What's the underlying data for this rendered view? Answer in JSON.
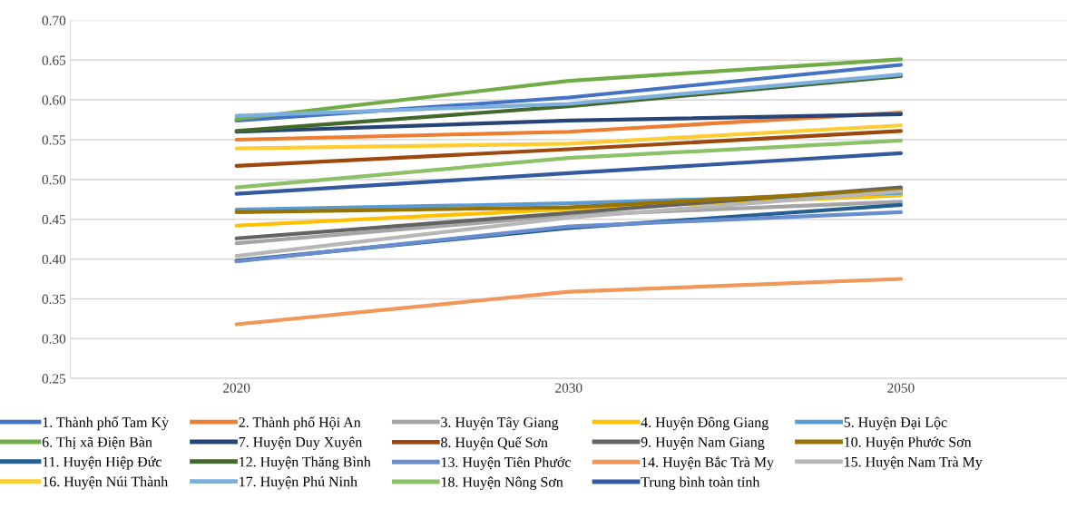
{
  "chart_data": {
    "type": "line",
    "categories": [
      "2020",
      "2030",
      "2050"
    ],
    "ylim": [
      0.25,
      0.7
    ],
    "yticks": [
      {
        "value": 0.25,
        "label": "0.25"
      },
      {
        "value": 0.3,
        "label": "0.30"
      },
      {
        "value": 0.35,
        "label": "0.35"
      },
      {
        "value": 0.4,
        "label": "0.40"
      },
      {
        "value": 0.45,
        "label": "0.45"
      },
      {
        "value": 0.5,
        "label": "0.50"
      },
      {
        "value": 0.55,
        "label": "0.55"
      },
      {
        "value": 0.6,
        "label": "0.60"
      },
      {
        "value": 0.65,
        "label": "0.65"
      },
      {
        "value": 0.7,
        "label": "0.70"
      }
    ],
    "grid": "y",
    "legend": "bottom",
    "marker": "none",
    "line_style": "solid",
    "series": [
      {
        "name": "1. Thành phố Tam Kỳ",
        "color": "#4472c4",
        "values": [
          0.574,
          0.603,
          0.644
        ]
      },
      {
        "name": "2. Thành phố Hội An",
        "color": "#ed7d31",
        "values": [
          0.55,
          0.56,
          0.584
        ]
      },
      {
        "name": "3. Huyện Tây Giang",
        "color": "#a5a5a5",
        "values": [
          0.42,
          0.455,
          0.472
        ]
      },
      {
        "name": "4. Huyện Đông Giang",
        "color": "#ffc000",
        "values": [
          0.442,
          0.463,
          0.48
        ]
      },
      {
        "name": "5. Huyện Đại Lộc",
        "color": "#5b9bd5",
        "values": [
          0.462,
          0.47,
          0.483
        ]
      },
      {
        "name": "6. Thị xã Điện Bàn",
        "color": "#70ad47",
        "values": [
          0.576,
          0.624,
          0.651
        ]
      },
      {
        "name": "7. Huyện Duy Xuyên",
        "color": "#264478",
        "values": [
          0.56,
          0.574,
          0.582
        ]
      },
      {
        "name": "8. Huyện Quế Sơn",
        "color": "#9e480e",
        "values": [
          0.517,
          0.538,
          0.561
        ]
      },
      {
        "name": "9. Huyện Nam Giang",
        "color": "#636363",
        "values": [
          0.426,
          0.458,
          0.49
        ]
      },
      {
        "name": "10. Huyện Phước Sơn",
        "color": "#997300",
        "values": [
          0.459,
          0.465,
          0.487
        ]
      },
      {
        "name": "11. Huyện Hiệp Đức",
        "color": "#255e91",
        "values": [
          0.398,
          0.439,
          0.468
        ]
      },
      {
        "name": "12. Huyện Thăng Bình",
        "color": "#43682b",
        "values": [
          0.561,
          0.592,
          0.63
        ]
      },
      {
        "name": "13. Huyện Tiên Phước",
        "color": "#698ed0",
        "values": [
          0.397,
          0.441,
          0.459
        ]
      },
      {
        "name": "14. Huyện Bắc Trà My",
        "color": "#f1975a",
        "values": [
          0.318,
          0.359,
          0.375
        ]
      },
      {
        "name": "15. Huyện Nam Trà My",
        "color": "#b7b7b7",
        "values": [
          0.404,
          0.452,
          0.485
        ]
      },
      {
        "name": "16. Huyện Núi Thành",
        "color": "#ffcd33",
        "values": [
          0.539,
          0.545,
          0.568
        ]
      },
      {
        "name": "17. Huyện Phú Ninh",
        "color": "#7cafdd",
        "values": [
          0.58,
          0.595,
          0.632
        ]
      },
      {
        "name": "18. Huyện Nông Sơn",
        "color": "#8cc168",
        "values": [
          0.49,
          0.527,
          0.549
        ]
      },
      {
        "name": "Trung bình toàn tỉnh",
        "color": "#335aa1",
        "values": [
          0.482,
          0.508,
          0.533
        ]
      }
    ]
  }
}
